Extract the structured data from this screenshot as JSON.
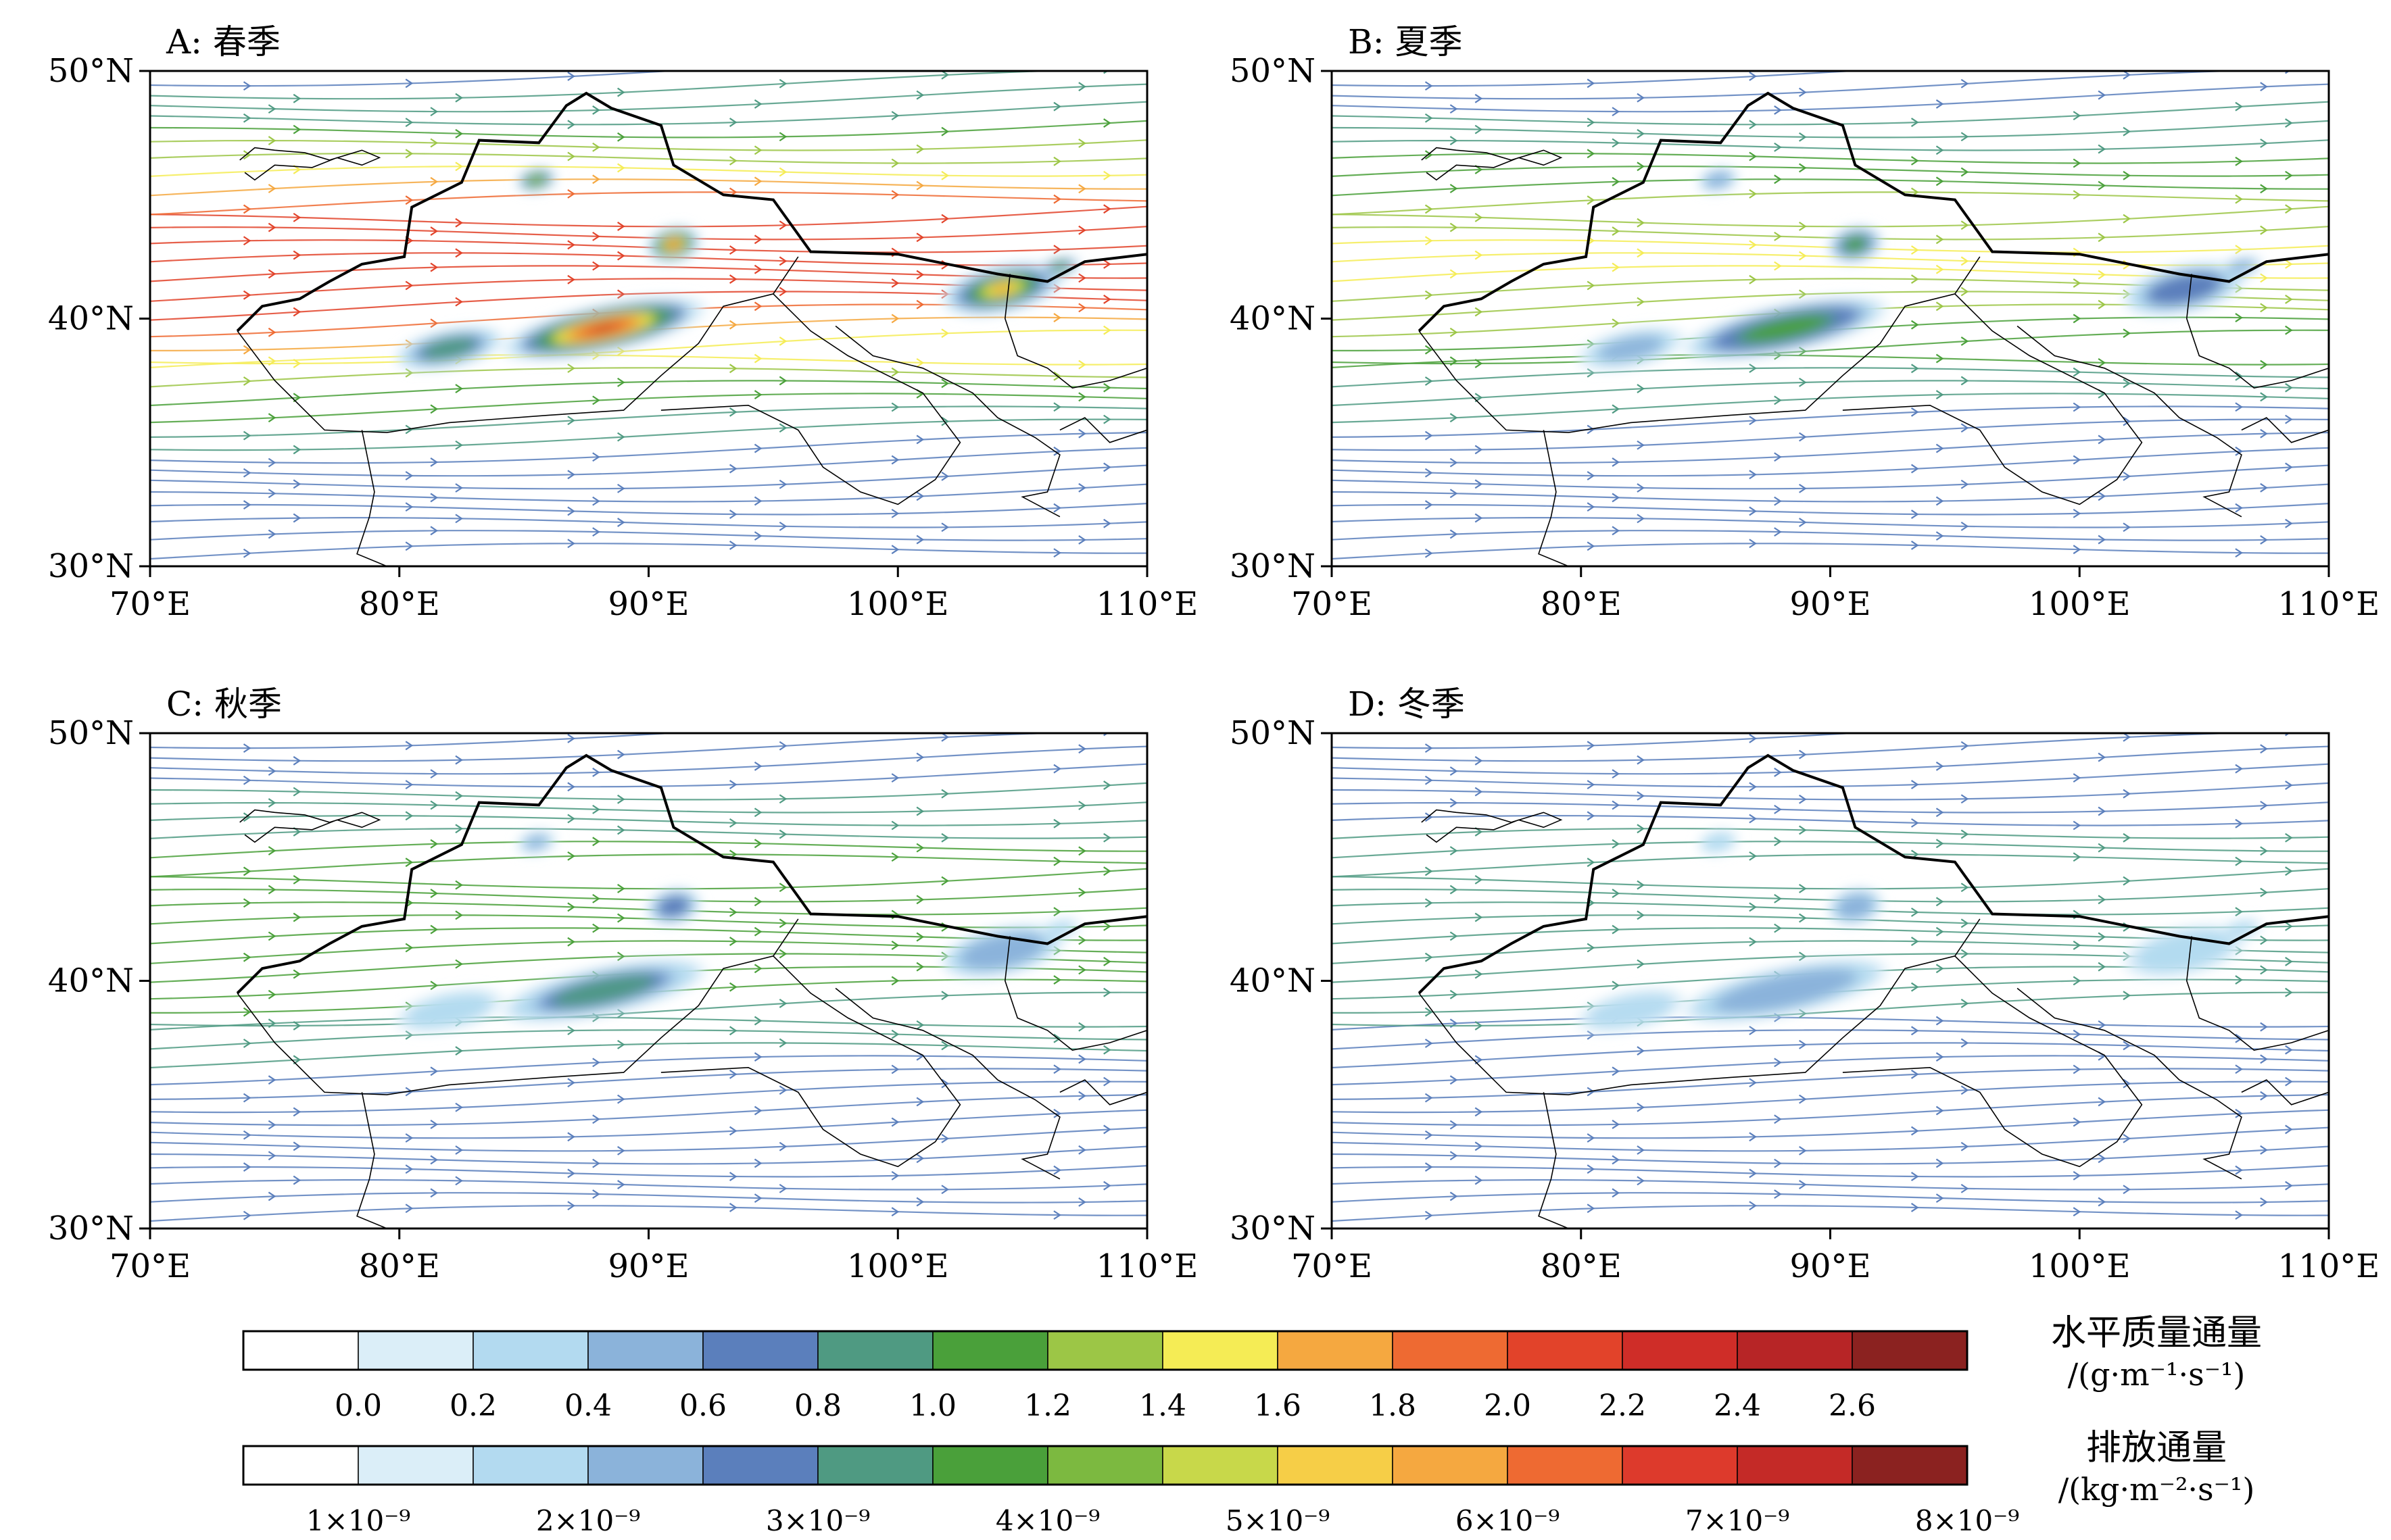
{
  "figure": {
    "lon_ticks": [
      "70°E",
      "80°E",
      "90°E",
      "100°E",
      "110°E"
    ],
    "lat_ticks": [
      "50°N",
      "40°N",
      "30°N"
    ],
    "extent": {
      "lon": [
        70,
        110
      ],
      "lat": [
        30,
        50
      ]
    }
  },
  "panels": [
    {
      "id": "A",
      "title": "A: 春季",
      "intensity": 1.0
    },
    {
      "id": "B",
      "title": "B: 夏季",
      "intensity": 0.45
    },
    {
      "id": "C",
      "title": "C: 秋季",
      "intensity": 0.3
    },
    {
      "id": "D",
      "title": "D: 冬季",
      "intensity": 0.12
    }
  ],
  "colorbars": [
    {
      "name": "水平质量通量",
      "unit": "/(g·m⁻¹·s⁻¹)",
      "colors": [
        "#ffffff",
        "#dbeef8",
        "#b3daf0",
        "#8bb3da",
        "#5b7fbc",
        "#4f9a82",
        "#4aa03a",
        "#9cc646",
        "#f5ec55",
        "#f5a840",
        "#ee6a32",
        "#e2432a",
        "#cf2d28",
        "#b72526",
        "#8b2220"
      ],
      "labels": [
        "0.0",
        "0.2",
        "0.4",
        "0.6",
        "0.8",
        "1.0",
        "1.2",
        "1.4",
        "1.6",
        "1.8",
        "2.0",
        "2.2",
        "2.4",
        "2.6"
      ]
    },
    {
      "name": "排放通量",
      "unit": "/(kg·m⁻²·s⁻¹)",
      "colors": [
        "#ffffff",
        "#dbeef8",
        "#b3daf0",
        "#8bb3da",
        "#5b7fbc",
        "#4f9a82",
        "#4aa03a",
        "#7cb940",
        "#c8d84a",
        "#f6ce47",
        "#f5a840",
        "#ee6a32",
        "#dd3a2c",
        "#c42a27",
        "#8b2220"
      ],
      "labels": [
        "1×10⁻⁹",
        "2×10⁻⁹",
        "3×10⁻⁹",
        "4×10⁻⁹",
        "5×10⁻⁹",
        "6×10⁻⁹",
        "7×10⁻⁹",
        "8×10⁻⁹"
      ]
    }
  ]
}
